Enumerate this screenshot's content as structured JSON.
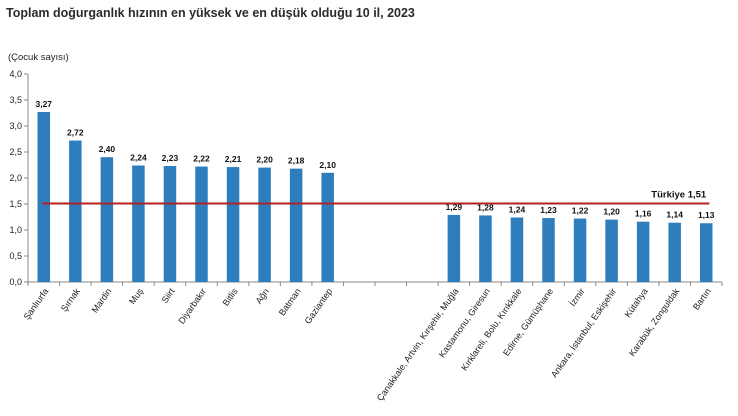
{
  "title": "Toplam doğurganlık hızının en yüksek ve en düşük olduğu 10 il, 2023",
  "chart_data": {
    "type": "bar",
    "ylabel": "(Çocuk sayısı)",
    "ylim": [
      0,
      4.0
    ],
    "yticks": [
      "0,0",
      "0,5",
      "1,0",
      "1,5",
      "2,0",
      "2,5",
      "3,0",
      "3,5",
      "4,0"
    ],
    "categories": [
      "Şanlıurfa",
      "Şırnak",
      "Mardin",
      "Muş",
      "Siirt",
      "Diyarbakır",
      "Bitlis",
      "Ağrı",
      "Batman",
      "Gaziantep",
      "",
      "",
      "",
      "Çanakkale, Artvin, Kırşehir, Muğla",
      "Kastamonu, Giresun",
      "Kırklareli, Bolu, Kırıkkale",
      "Edirne, Gümüşhane",
      "İzmir",
      "Ankara, İstanbul, Eskişehir",
      "Kütahya",
      "Karabük, Zonguldak",
      "Bartın"
    ],
    "values": [
      3.27,
      2.72,
      2.4,
      2.24,
      2.23,
      2.22,
      2.21,
      2.2,
      2.18,
      2.1,
      null,
      null,
      null,
      1.29,
      1.28,
      1.24,
      1.23,
      1.22,
      1.2,
      1.16,
      1.14,
      1.13
    ],
    "value_labels": [
      "3,27",
      "2,72",
      "2,40",
      "2,24",
      "2,23",
      "2,22",
      "2,21",
      "2,20",
      "2,18",
      "2,10",
      "",
      "",
      "",
      "1,29",
      "1,28",
      "1,24",
      "1,23",
      "1,22",
      "1,20",
      "1,16",
      "1,14",
      "1,13"
    ],
    "reference_line": {
      "label": "Türkiye",
      "value": 1.51,
      "value_label": "1,51"
    },
    "colors": {
      "bar": "#2e7ebd",
      "reference_line": "#b22222",
      "axis": "#888888"
    },
    "grid": false
  }
}
